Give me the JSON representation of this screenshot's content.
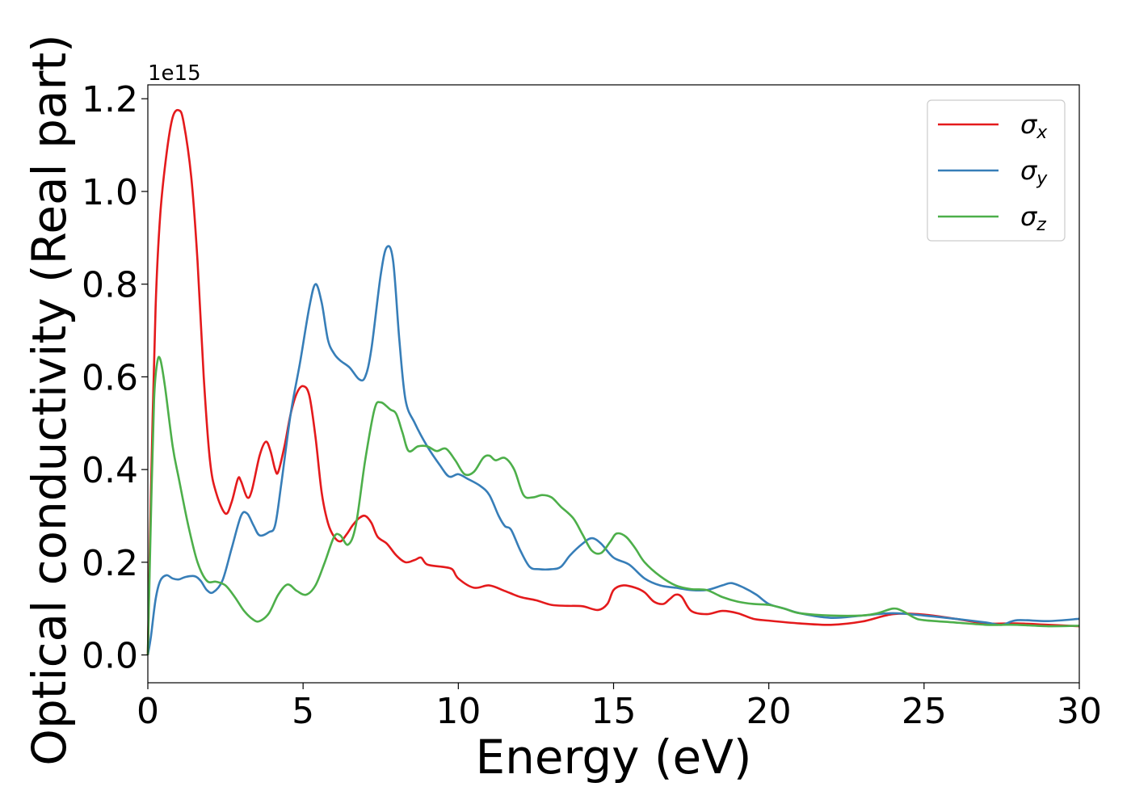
{
  "chart_data": {
    "type": "line",
    "title": "",
    "xlabel": "Energy (eV)",
    "ylabel": "Optical conductivity (Real part)",
    "y_offset_label": "1e15",
    "xlim": [
      0,
      30
    ],
    "ylim": [
      -0.06,
      1.23
    ],
    "xticks": [
      0,
      5,
      10,
      15,
      20,
      25,
      30
    ],
    "xtick_labels": [
      "0",
      "5",
      "10",
      "15",
      "20",
      "25",
      "30"
    ],
    "yticks": [
      0.0,
      0.2,
      0.4,
      0.6,
      0.8,
      1.0,
      1.2
    ],
    "ytick_labels": [
      "0.0",
      "0.2",
      "0.4",
      "0.6",
      "0.8",
      "1.0",
      "1.2"
    ],
    "grid": false,
    "legend_position": "top-right",
    "series": [
      {
        "name": "σx",
        "symbol": "σ",
        "subscript": "x",
        "color": "#e41a1c",
        "points": [
          [
            0,
            0
          ],
          [
            0.1,
            0.35
          ],
          [
            0.25,
            0.75
          ],
          [
            0.4,
            0.95
          ],
          [
            0.6,
            1.08
          ],
          [
            0.8,
            1.16
          ],
          [
            1.0,
            1.175
          ],
          [
            1.15,
            1.15
          ],
          [
            1.4,
            1.03
          ],
          [
            1.6,
            0.85
          ],
          [
            1.8,
            0.6
          ],
          [
            2.0,
            0.42
          ],
          [
            2.2,
            0.35
          ],
          [
            2.5,
            0.305
          ],
          [
            2.7,
            0.33
          ],
          [
            2.9,
            0.38
          ],
          [
            3.0,
            0.375
          ],
          [
            3.2,
            0.34
          ],
          [
            3.35,
            0.355
          ],
          [
            3.6,
            0.43
          ],
          [
            3.8,
            0.46
          ],
          [
            3.95,
            0.44
          ],
          [
            4.1,
            0.4
          ],
          [
            4.2,
            0.395
          ],
          [
            4.4,
            0.45
          ],
          [
            4.6,
            0.52
          ],
          [
            4.8,
            0.565
          ],
          [
            5.0,
            0.58
          ],
          [
            5.2,
            0.56
          ],
          [
            5.4,
            0.47
          ],
          [
            5.6,
            0.35
          ],
          [
            5.8,
            0.285
          ],
          [
            6.0,
            0.255
          ],
          [
            6.2,
            0.245
          ],
          [
            6.4,
            0.26
          ],
          [
            6.6,
            0.28
          ],
          [
            6.8,
            0.295
          ],
          [
            7.0,
            0.3
          ],
          [
            7.2,
            0.285
          ],
          [
            7.4,
            0.255
          ],
          [
            7.7,
            0.24
          ],
          [
            8.0,
            0.215
          ],
          [
            8.3,
            0.2
          ],
          [
            8.6,
            0.205
          ],
          [
            8.8,
            0.21
          ],
          [
            9.0,
            0.195
          ],
          [
            9.5,
            0.19
          ],
          [
            9.8,
            0.185
          ],
          [
            10.0,
            0.165
          ],
          [
            10.5,
            0.145
          ],
          [
            11.0,
            0.15
          ],
          [
            11.5,
            0.138
          ],
          [
            12.0,
            0.125
          ],
          [
            12.5,
            0.118
          ],
          [
            13.0,
            0.108
          ],
          [
            13.5,
            0.106
          ],
          [
            14.0,
            0.105
          ],
          [
            14.5,
            0.097
          ],
          [
            14.8,
            0.11
          ],
          [
            15.0,
            0.14
          ],
          [
            15.3,
            0.15
          ],
          [
            15.7,
            0.145
          ],
          [
            16.0,
            0.135
          ],
          [
            16.3,
            0.115
          ],
          [
            16.6,
            0.11
          ],
          [
            16.8,
            0.12
          ],
          [
            17.0,
            0.13
          ],
          [
            17.2,
            0.125
          ],
          [
            17.5,
            0.095
          ],
          [
            18.0,
            0.088
          ],
          [
            18.5,
            0.095
          ],
          [
            19.0,
            0.09
          ],
          [
            19.5,
            0.078
          ],
          [
            20.0,
            0.074
          ],
          [
            21.0,
            0.068
          ],
          [
            22.0,
            0.065
          ],
          [
            23.0,
            0.072
          ],
          [
            24.0,
            0.088
          ],
          [
            25.0,
            0.087
          ],
          [
            26.0,
            0.078
          ],
          [
            27.0,
            0.068
          ],
          [
            28.0,
            0.068
          ],
          [
            29.0,
            0.065
          ],
          [
            30.0,
            0.062
          ]
        ]
      },
      {
        "name": "σy",
        "symbol": "σ",
        "subscript": "y",
        "color": "#377eb8",
        "points": [
          [
            0,
            0
          ],
          [
            0.1,
            0.04
          ],
          [
            0.25,
            0.12
          ],
          [
            0.4,
            0.16
          ],
          [
            0.6,
            0.172
          ],
          [
            0.8,
            0.165
          ],
          [
            1.0,
            0.163
          ],
          [
            1.2,
            0.168
          ],
          [
            1.5,
            0.17
          ],
          [
            1.7,
            0.16
          ],
          [
            1.9,
            0.14
          ],
          [
            2.1,
            0.135
          ],
          [
            2.4,
            0.16
          ],
          [
            2.7,
            0.23
          ],
          [
            3.0,
            0.3
          ],
          [
            3.2,
            0.305
          ],
          [
            3.4,
            0.28
          ],
          [
            3.6,
            0.258
          ],
          [
            3.9,
            0.265
          ],
          [
            4.1,
            0.28
          ],
          [
            4.3,
            0.37
          ],
          [
            4.6,
            0.52
          ],
          [
            4.9,
            0.63
          ],
          [
            5.2,
            0.75
          ],
          [
            5.4,
            0.8
          ],
          [
            5.6,
            0.76
          ],
          [
            5.8,
            0.68
          ],
          [
            6.0,
            0.65
          ],
          [
            6.2,
            0.635
          ],
          [
            6.5,
            0.62
          ],
          [
            6.8,
            0.595
          ],
          [
            7.0,
            0.6
          ],
          [
            7.2,
            0.66
          ],
          [
            7.5,
            0.82
          ],
          [
            7.7,
            0.88
          ],
          [
            7.9,
            0.85
          ],
          [
            8.1,
            0.68
          ],
          [
            8.3,
            0.55
          ],
          [
            8.6,
            0.5
          ],
          [
            9.0,
            0.45
          ],
          [
            9.4,
            0.41
          ],
          [
            9.7,
            0.385
          ],
          [
            10.0,
            0.39
          ],
          [
            10.3,
            0.38
          ],
          [
            10.7,
            0.365
          ],
          [
            11.0,
            0.345
          ],
          [
            11.3,
            0.3
          ],
          [
            11.5,
            0.278
          ],
          [
            11.7,
            0.27
          ],
          [
            12.0,
            0.225
          ],
          [
            12.3,
            0.19
          ],
          [
            12.6,
            0.185
          ],
          [
            13.0,
            0.185
          ],
          [
            13.3,
            0.19
          ],
          [
            13.6,
            0.215
          ],
          [
            14.0,
            0.24
          ],
          [
            14.3,
            0.252
          ],
          [
            14.6,
            0.24
          ],
          [
            15.0,
            0.21
          ],
          [
            15.5,
            0.195
          ],
          [
            16.0,
            0.165
          ],
          [
            16.5,
            0.15
          ],
          [
            17.0,
            0.145
          ],
          [
            17.5,
            0.14
          ],
          [
            18.0,
            0.14
          ],
          [
            18.5,
            0.15
          ],
          [
            18.8,
            0.155
          ],
          [
            19.2,
            0.145
          ],
          [
            19.6,
            0.13
          ],
          [
            20.0,
            0.11
          ],
          [
            20.5,
            0.1
          ],
          [
            21.0,
            0.09
          ],
          [
            22.0,
            0.08
          ],
          [
            23.0,
            0.085
          ],
          [
            24.0,
            0.09
          ],
          [
            25.0,
            0.085
          ],
          [
            26.0,
            0.078
          ],
          [
            27.0,
            0.07
          ],
          [
            27.5,
            0.065
          ],
          [
            28.0,
            0.075
          ],
          [
            29.0,
            0.073
          ],
          [
            30.0,
            0.078
          ]
        ]
      },
      {
        "name": "σz",
        "symbol": "σ",
        "subscript": "z",
        "color": "#4daf4a",
        "points": [
          [
            0,
            0
          ],
          [
            0.1,
            0.3
          ],
          [
            0.2,
            0.55
          ],
          [
            0.3,
            0.63
          ],
          [
            0.4,
            0.638
          ],
          [
            0.55,
            0.58
          ],
          [
            0.8,
            0.45
          ],
          [
            1.0,
            0.38
          ],
          [
            1.3,
            0.28
          ],
          [
            1.6,
            0.2
          ],
          [
            1.9,
            0.16
          ],
          [
            2.2,
            0.158
          ],
          [
            2.5,
            0.15
          ],
          [
            2.8,
            0.125
          ],
          [
            3.1,
            0.095
          ],
          [
            3.4,
            0.076
          ],
          [
            3.6,
            0.073
          ],
          [
            3.9,
            0.09
          ],
          [
            4.2,
            0.13
          ],
          [
            4.5,
            0.152
          ],
          [
            4.8,
            0.138
          ],
          [
            5.1,
            0.13
          ],
          [
            5.4,
            0.15
          ],
          [
            5.7,
            0.2
          ],
          [
            6.0,
            0.255
          ],
          [
            6.2,
            0.258
          ],
          [
            6.45,
            0.238
          ],
          [
            6.7,
            0.28
          ],
          [
            7.0,
            0.42
          ],
          [
            7.3,
            0.53
          ],
          [
            7.5,
            0.545
          ],
          [
            7.8,
            0.53
          ],
          [
            8.0,
            0.52
          ],
          [
            8.2,
            0.48
          ],
          [
            8.4,
            0.44
          ],
          [
            8.7,
            0.45
          ],
          [
            9.0,
            0.45
          ],
          [
            9.3,
            0.44
          ],
          [
            9.6,
            0.445
          ],
          [
            9.9,
            0.42
          ],
          [
            10.2,
            0.39
          ],
          [
            10.5,
            0.395
          ],
          [
            10.8,
            0.425
          ],
          [
            11.0,
            0.43
          ],
          [
            11.2,
            0.42
          ],
          [
            11.5,
            0.425
          ],
          [
            11.8,
            0.4
          ],
          [
            12.1,
            0.345
          ],
          [
            12.4,
            0.34
          ],
          [
            12.7,
            0.345
          ],
          [
            13.0,
            0.34
          ],
          [
            13.3,
            0.32
          ],
          [
            13.7,
            0.295
          ],
          [
            14.0,
            0.26
          ],
          [
            14.3,
            0.225
          ],
          [
            14.6,
            0.22
          ],
          [
            14.9,
            0.245
          ],
          [
            15.1,
            0.262
          ],
          [
            15.4,
            0.255
          ],
          [
            15.7,
            0.23
          ],
          [
            16.0,
            0.2
          ],
          [
            16.5,
            0.17
          ],
          [
            17.0,
            0.15
          ],
          [
            17.5,
            0.142
          ],
          [
            18.0,
            0.14
          ],
          [
            18.5,
            0.125
          ],
          [
            19.0,
            0.115
          ],
          [
            19.5,
            0.11
          ],
          [
            20.0,
            0.108
          ],
          [
            20.5,
            0.1
          ],
          [
            21.0,
            0.09
          ],
          [
            22.0,
            0.085
          ],
          [
            23.0,
            0.085
          ],
          [
            23.5,
            0.09
          ],
          [
            24.0,
            0.1
          ],
          [
            24.3,
            0.095
          ],
          [
            24.7,
            0.08
          ],
          [
            25.0,
            0.075
          ],
          [
            26.0,
            0.07
          ],
          [
            27.0,
            0.065
          ],
          [
            27.5,
            0.065
          ],
          [
            28.0,
            0.065
          ],
          [
            29.0,
            0.062
          ],
          [
            30.0,
            0.063
          ]
        ]
      }
    ]
  }
}
